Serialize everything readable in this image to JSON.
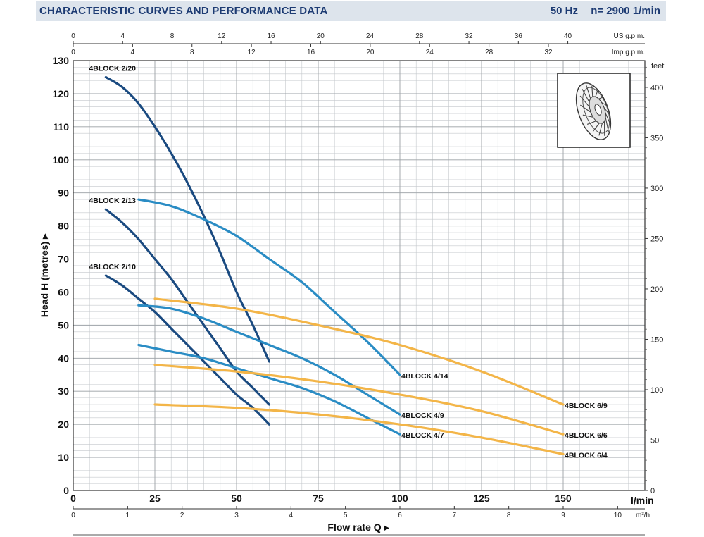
{
  "header": {
    "title": "CHARACTERISTIC CURVES AND PERFORMANCE DATA",
    "frequency": "50 Hz",
    "speed": "n= 2900  1/min"
  },
  "chart_data": {
    "type": "line",
    "ylabel": "Head H (metres)",
    "xlabel": "Flow rate Q",
    "x_unit": "l/min",
    "y_unit_right": "feet",
    "xlim": [
      0,
      175
    ],
    "ylim": [
      0,
      130
    ],
    "x_ticks": [
      0,
      25,
      50,
      75,
      100,
      125,
      150
    ],
    "y_ticks": [
      0,
      10,
      20,
      30,
      40,
      50,
      60,
      70,
      80,
      90,
      100,
      110,
      120,
      130
    ],
    "feet_ticks": [
      0,
      50,
      100,
      150,
      200,
      250,
      300,
      350,
      400
    ],
    "feet_label": "feet",
    "m3h_ticks": [
      0,
      1,
      2,
      3,
      4,
      5,
      6,
      7,
      8,
      9,
      10
    ],
    "m3h_unit": "m³/h",
    "us_gpm_ticks": [
      0,
      4,
      8,
      12,
      16,
      20,
      24,
      28,
      32,
      36,
      40
    ],
    "us_gpm_unit": "US g.p.m.",
    "imp_gpm_ticks": [
      0,
      4,
      8,
      12,
      16,
      20,
      24,
      28,
      32
    ],
    "imp_gpm_unit": "Imp g.p.m.",
    "grid": true,
    "series": [
      {
        "name": "4BLOCK 2/20",
        "color": "#1a4a80",
        "x": [
          10,
          15,
          20,
          25,
          30,
          35,
          40,
          45,
          50,
          55,
          60
        ],
        "y": [
          125,
          122,
          117,
          110,
          102,
          93,
          83,
          72,
          60,
          50,
          39
        ]
      },
      {
        "name": "4BLOCK 2/13",
        "color": "#1a4a80",
        "x": [
          10,
          15,
          20,
          25,
          30,
          35,
          40,
          45,
          50,
          55,
          60
        ],
        "y": [
          85,
          81,
          76,
          70,
          64,
          57,
          50,
          43,
          36,
          31,
          26
        ]
      },
      {
        "name": "4BLOCK 2/10",
        "color": "#1a4a80",
        "x": [
          10,
          15,
          20,
          25,
          30,
          35,
          40,
          45,
          50,
          55,
          60
        ],
        "y": [
          65,
          62,
          58,
          54,
          49,
          44,
          39,
          34,
          29,
          25,
          20
        ]
      },
      {
        "name": "4BLOCK 4/14",
        "color": "#2a8cc4",
        "x": [
          20,
          30,
          40,
          50,
          60,
          70,
          80,
          90,
          100
        ],
        "y": [
          88,
          86,
          82,
          77,
          70,
          63,
          54,
          45,
          35
        ]
      },
      {
        "name": "4BLOCK 4/9",
        "color": "#2a8cc4",
        "x": [
          20,
          30,
          40,
          50,
          60,
          70,
          80,
          90,
          100
        ],
        "y": [
          56,
          55,
          52,
          48,
          44,
          40,
          35,
          29,
          23
        ]
      },
      {
        "name": "4BLOCK 4/7",
        "color": "#2a8cc4",
        "x": [
          20,
          30,
          40,
          50,
          60,
          70,
          80,
          90,
          100
        ],
        "y": [
          44,
          42,
          40,
          37,
          34,
          31,
          27,
          22,
          17
        ]
      },
      {
        "name": "4BLOCK 6/9",
        "color": "#f3b548",
        "x": [
          25,
          50,
          75,
          100,
          125,
          150
        ],
        "y": [
          58,
          55,
          50,
          44,
          36,
          26
        ]
      },
      {
        "name": "4BLOCK 6/6",
        "color": "#f3b548",
        "x": [
          25,
          50,
          75,
          100,
          125,
          150
        ],
        "y": [
          38,
          36,
          33,
          29,
          24,
          17
        ]
      },
      {
        "name": "4BLOCK 6/4",
        "color": "#f3b548",
        "x": [
          25,
          50,
          75,
          100,
          125,
          150
        ],
        "y": [
          26,
          25,
          23,
          20,
          16,
          11
        ]
      }
    ]
  }
}
